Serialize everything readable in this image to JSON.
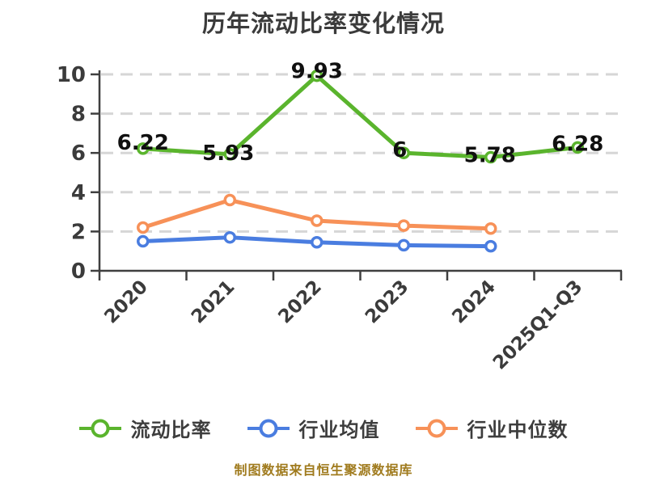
{
  "title": "历年流动比率变化情况",
  "footer": "制图数据来自恒生聚源数据库",
  "colors": {
    "title_text": "#3b3b3b",
    "axis": "#3f3f3f",
    "axis_tick_text": "#3b3b3b",
    "grid": "#d6d6d6",
    "data_label": "#101010",
    "legend_text": "#3d3d3d",
    "footer_text": "#a07b1e",
    "series_current_ratio": "#5ab42d",
    "series_industry_average": "#4a7de0",
    "series_industry_median": "#f79158",
    "marker_fill": "#ffffff"
  },
  "chart_data": {
    "type": "line",
    "title": "历年流动比率变化情况",
    "categories": [
      "2020",
      "2021",
      "2022",
      "2023",
      "2024",
      "2025Q1-Q3"
    ],
    "series": [
      {
        "name": "流动比率",
        "color": "#5ab42d",
        "values": [
          6.22,
          5.93,
          9.93,
          6,
          5.78,
          6.28
        ],
        "labels": [
          "6.22",
          "5.93",
          "9.93",
          "6",
          "5.78",
          "6.28"
        ]
      },
      {
        "name": "行业均值",
        "color": "#4a7de0",
        "values": [
          1.5,
          1.7,
          1.45,
          1.3,
          1.25
        ]
      },
      {
        "name": "行业中位数",
        "color": "#f79158",
        "values": [
          2.2,
          3.6,
          2.55,
          2.3,
          2.15
        ]
      }
    ],
    "xlabel": "",
    "ylabel": "",
    "ylim": [
      0,
      10
    ],
    "yticks": [
      0,
      2,
      4,
      6,
      8,
      10
    ],
    "ytick_labels": [
      "0",
      "2",
      "4",
      "6",
      "8",
      "10"
    ],
    "grid": "horizontal-dashed",
    "x_label_rotation": -45,
    "legend_position": "bottom",
    "marker_style": "white-filled circle with colored ring",
    "annotation": "制图数据来自恒生聚源数据库"
  },
  "legend": {
    "items": [
      {
        "label": "流动比率",
        "color": "#5ab42d"
      },
      {
        "label": "行业均值",
        "color": "#4a7de0"
      },
      {
        "label": "行业中位数",
        "color": "#f79158"
      }
    ]
  }
}
